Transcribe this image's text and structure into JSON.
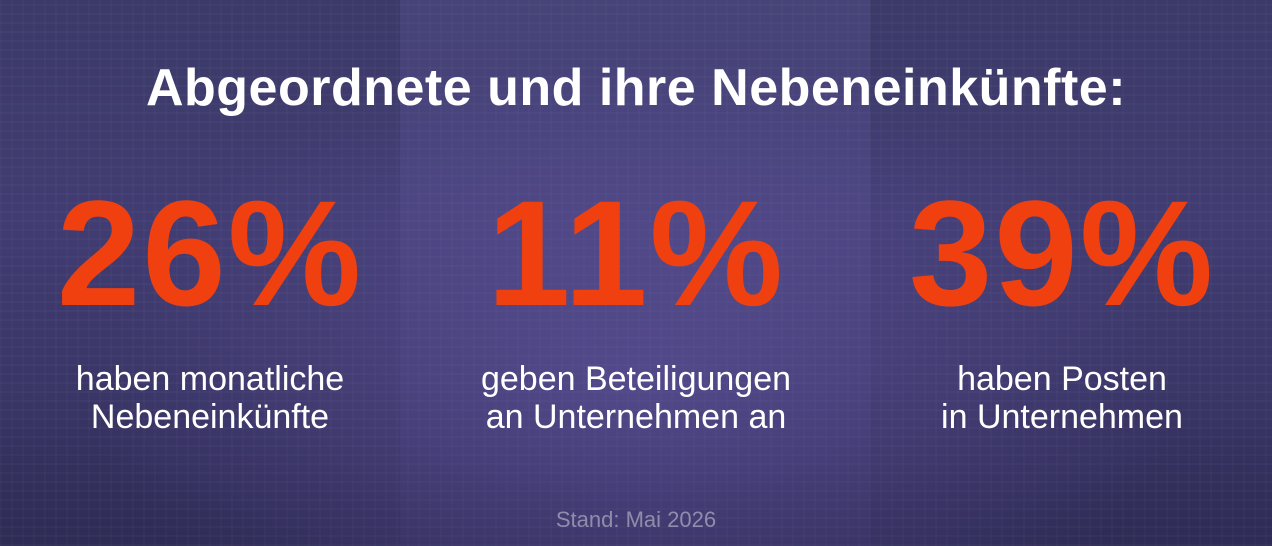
{
  "title": "Abgeordnete und ihre Nebeneinkünfte:",
  "stats": [
    {
      "value": "26%",
      "description_line1": "haben monatliche",
      "description_line2": "Nebeneinkünfte"
    },
    {
      "value": "11%",
      "description_line1": "geben Beteiligungen",
      "description_line2": "an Unternehmen an"
    },
    {
      "value": "39%",
      "description_line1": "haben Posten",
      "description_line2": "in Unternehmen"
    }
  ],
  "footnote": "Stand: Mai 2026",
  "colors": {
    "accent": "#f0400f",
    "text": "#ffffff",
    "background": "#3b3a68",
    "footnote": "#8f8dac"
  }
}
